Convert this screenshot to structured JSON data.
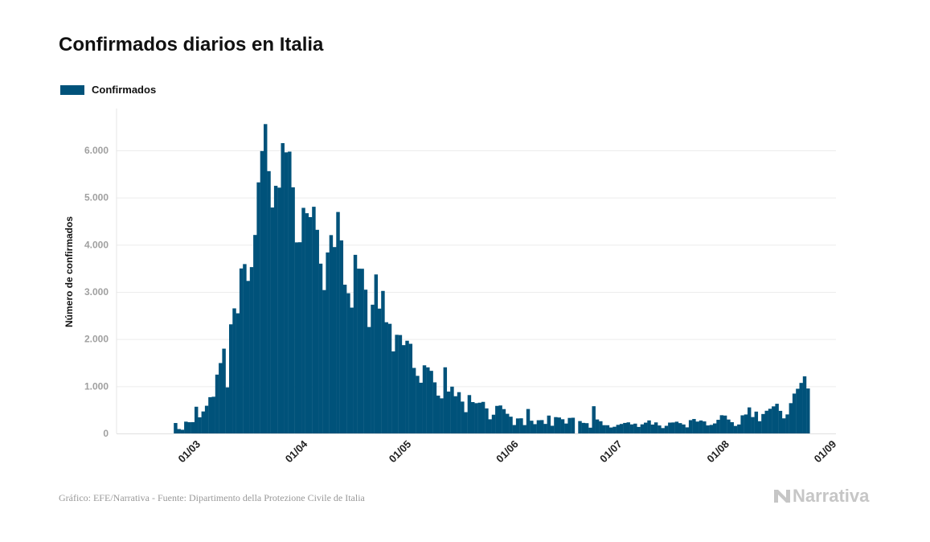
{
  "chart_data": {
    "type": "bar",
    "title": "Confirmados diarios en Italia",
    "xlabel": "",
    "ylabel": "Número de confirmados",
    "ylim": [
      0,
      6800
    ],
    "yticks": [
      "0",
      "1.000",
      "2.000",
      "3.000",
      "4.000",
      "5.000",
      "6.000"
    ],
    "ytick_values": [
      0,
      1000,
      2000,
      3000,
      4000,
      5000,
      6000
    ],
    "xticks": [
      "01/03",
      "01/04",
      "01/05",
      "01/06",
      "01/07",
      "01/08",
      "01/09"
    ],
    "grid": true,
    "legend": "top-left",
    "color": "#00527a",
    "series": [
      {
        "name": "Confirmados",
        "values": [
          221,
          93,
          78,
          250,
          238,
          240,
          566,
          342,
          466,
          587,
          769,
          778,
          1247,
          1492,
          1797,
          977,
          2313,
          2651,
          2547,
          3497,
          3590,
          3233,
          3526,
          4207,
          5322,
          5986,
          6557,
          5560,
          4789,
          5249,
          5210,
          6153,
          5959,
          5974,
          5217,
          4050,
          4053,
          4782,
          4668,
          4585,
          4805,
          4316,
          3599,
          3039,
          3836,
          4204,
          3951,
          4694,
          4092,
          3153,
          2972,
          2667,
          3786,
          3493,
          3491,
          3047,
          2256,
          2729,
          3370,
          2646,
          3021,
          2357,
          2324,
          1739,
          2091,
          2086,
          1872,
          1965,
          1900,
          1389,
          1221,
          1075,
          1444,
          1401,
          1327,
          1083,
          802,
          744,
          1402,
          888,
          992,
          789,
          875,
          675,
          451,
          813,
          665,
          642,
          652,
          669,
          531,
          300,
          397,
          584,
          593,
          516,
          416,
          355,
          178,
          318,
          321,
          177,
          518,
          270,
          197,
          280,
          283,
          202,
          379,
          163,
          346,
          338,
          301,
          210,
          329,
          333,
          -148,
          262,
          224,
          218,
          122,
          577,
          296,
          259,
          175,
          174,
          126,
          142,
          182,
          201,
          223,
          235,
          192,
          208,
          138,
          193,
          229,
          276,
          188,
          234,
          169,
          114,
          162,
          230,
          233,
          249,
          219,
          190,
          129,
          282,
          306,
          252,
          275,
          255,
          170,
          181,
          212,
          289,
          386,
          379,
          295,
          239,
          159,
          190,
          384,
          402,
          552,
          347,
          463,
          259,
          412,
          481,
          523,
          574,
          629,
          479,
          320,
          403,
          642,
          845,
          947,
          1071,
          1210,
          953
        ]
      }
    ],
    "categories": [
      "24/02",
      "25/02",
      "26/02",
      "27/02",
      "28/02",
      "29/02",
      "01/03",
      "02/03",
      "03/03",
      "04/03",
      "05/03",
      "06/03",
      "07/03",
      "08/03",
      "09/03",
      "10/03",
      "11/03",
      "12/03",
      "13/03",
      "14/03",
      "15/03",
      "16/03",
      "17/03",
      "18/03",
      "19/03",
      "20/03",
      "21/03",
      "22/03",
      "23/03",
      "24/03",
      "25/03",
      "26/03",
      "27/03",
      "28/03",
      "29/03",
      "30/03",
      "31/03",
      "01/04",
      "02/04",
      "03/04",
      "04/04",
      "05/04",
      "06/04",
      "07/04",
      "08/04",
      "09/04",
      "10/04",
      "11/04",
      "12/04",
      "13/04",
      "14/04",
      "15/04",
      "16/04",
      "17/04",
      "18/04",
      "19/04",
      "20/04",
      "21/04",
      "22/04",
      "23/04",
      "24/04",
      "25/04",
      "26/04",
      "27/04",
      "28/04",
      "29/04",
      "30/04",
      "01/05",
      "02/05",
      "03/05",
      "04/05",
      "05/05",
      "06/05",
      "07/05",
      "08/05",
      "09/05",
      "10/05",
      "11/05",
      "12/05",
      "13/05",
      "14/05",
      "15/05",
      "16/05",
      "17/05",
      "18/05",
      "19/05",
      "20/05",
      "21/05",
      "22/05",
      "23/05",
      "24/05",
      "25/05",
      "26/05",
      "27/05",
      "28/05",
      "29/05",
      "30/05",
      "31/05",
      "01/06",
      "02/06",
      "03/06",
      "04/06",
      "05/06",
      "06/06",
      "07/06",
      "08/06",
      "09/06",
      "10/06",
      "11/06",
      "12/06",
      "13/06",
      "14/06",
      "15/06",
      "16/06",
      "17/06",
      "18/06",
      "19/06",
      "20/06",
      "21/06",
      "22/06",
      "23/06",
      "24/06",
      "25/06",
      "26/06",
      "27/06",
      "28/06",
      "29/06",
      "30/06",
      "01/07",
      "02/07",
      "03/07",
      "04/07",
      "05/07",
      "06/07",
      "07/07",
      "08/07",
      "09/07",
      "10/07",
      "11/07",
      "12/07",
      "13/07",
      "14/07",
      "15/07",
      "16/07",
      "17/07",
      "18/07",
      "19/07",
      "20/07",
      "21/07",
      "22/07",
      "23/07",
      "24/07",
      "25/07",
      "26/07",
      "27/07",
      "28/07",
      "29/07",
      "30/07",
      "31/07",
      "01/08",
      "02/08",
      "03/08",
      "04/08",
      "05/08",
      "06/08",
      "07/08",
      "08/08",
      "09/08",
      "10/08",
      "11/08",
      "12/08",
      "13/08",
      "14/08",
      "15/08",
      "16/08",
      "17/08",
      "18/08",
      "19/08",
      "20/08",
      "21/08",
      "22/08",
      "23/08",
      "24/08",
      "25/08"
    ]
  },
  "legend": {
    "label": "Confirmados"
  },
  "footer": {
    "source": "Gráfico: EFE/Narrativa - Fuente: Dipartimento della Protezione Civile de Italia",
    "logo": "Narrativa"
  }
}
